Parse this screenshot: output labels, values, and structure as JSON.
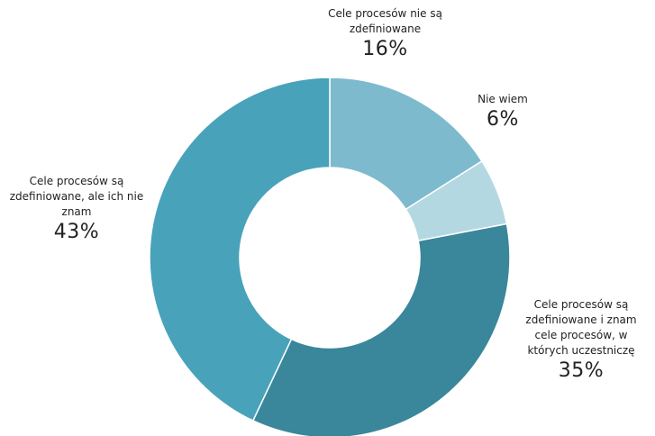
{
  "chart_data": {
    "type": "pie",
    "donut": true,
    "start_angle_deg": 0,
    "categories": [
      "Cele procesów nie są zdefiniowane",
      "Nie wiem",
      "Cele procesów są zdefiniowane i znam cele procesów, w których uczestniczę",
      "Cele procesów są zdefiniowane, ale ich nie znam"
    ],
    "values": [
      16,
      6,
      35,
      43
    ],
    "value_labels": [
      "16%",
      "6%",
      "35%",
      "43%"
    ],
    "colors": [
      "#7dbacd",
      "#b4d8e2",
      "#3a879b",
      "#48a2ba"
    ],
    "label_lines": [
      [
        "Cele procesów nie są",
        "zdefiniowane"
      ],
      [
        "Nie wiem"
      ],
      [
        "Cele procesów są",
        "zdefiniowane i znam",
        "cele procesów, w",
        "których uczestniczę"
      ],
      [
        "Cele procesów są",
        "zdefiniowane, ale ich nie",
        "znam"
      ]
    ]
  }
}
